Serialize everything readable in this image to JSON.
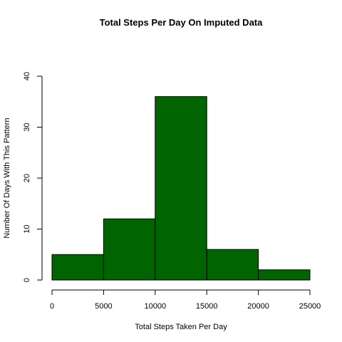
{
  "chart_data": {
    "type": "bar",
    "title": "Total Steps Per Day On Imputed Data",
    "xlabel": "Total Steps Taken Per Day",
    "ylabel": "Number Of Days With This Pattern",
    "bins": [
      {
        "from": 0,
        "to": 5000,
        "count": 5
      },
      {
        "from": 5000,
        "to": 10000,
        "count": 12
      },
      {
        "from": 10000,
        "to": 15000,
        "count": 36
      },
      {
        "from": 15000,
        "to": 20000,
        "count": 6
      },
      {
        "from": 20000,
        "to": 25000,
        "count": 2
      }
    ],
    "xlim": [
      0,
      25000
    ],
    "ylim": [
      0,
      40
    ],
    "x_ticks": [
      0,
      5000,
      10000,
      15000,
      20000,
      25000
    ],
    "y_ticks": [
      0,
      10,
      20,
      30,
      40
    ],
    "bar_color": "#006400",
    "grid": false,
    "legend": "none"
  }
}
